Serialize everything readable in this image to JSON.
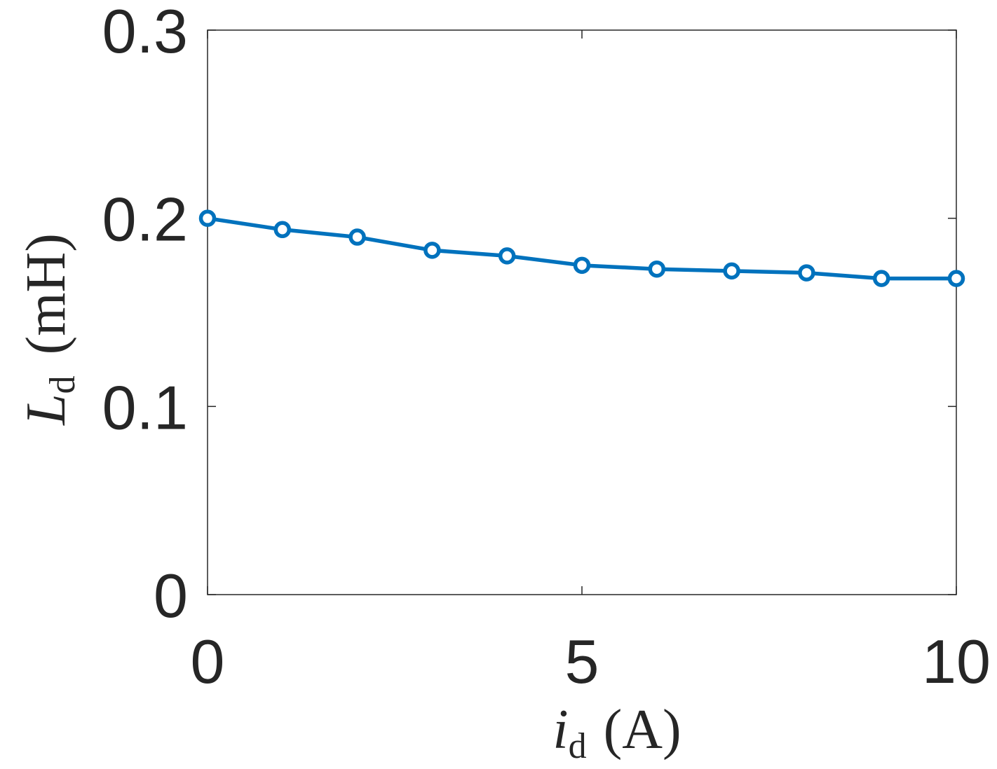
{
  "chart_data": {
    "type": "line",
    "title": "",
    "xlabel": {
      "symbol": "i",
      "subscript": "d",
      "unit": "(A)"
    },
    "ylabel": {
      "symbol": "L",
      "subscript": "d",
      "unit": "(mH)"
    },
    "xlim": [
      0,
      10
    ],
    "ylim": [
      0,
      0.3
    ],
    "xticks": [
      "0",
      "5",
      "10"
    ],
    "yticks": [
      "0",
      "0.1",
      "0.2",
      "0.3"
    ],
    "grid": false,
    "legend": "none",
    "series": [
      {
        "marker": "circle",
        "color": "#0072BD",
        "x": [
          0,
          1,
          2,
          3,
          4,
          5,
          6,
          7,
          8,
          9,
          10
        ],
        "y": [
          0.2,
          0.194,
          0.19,
          0.183,
          0.18,
          0.175,
          0.173,
          0.172,
          0.171,
          0.168,
          0.168
        ]
      }
    ]
  }
}
